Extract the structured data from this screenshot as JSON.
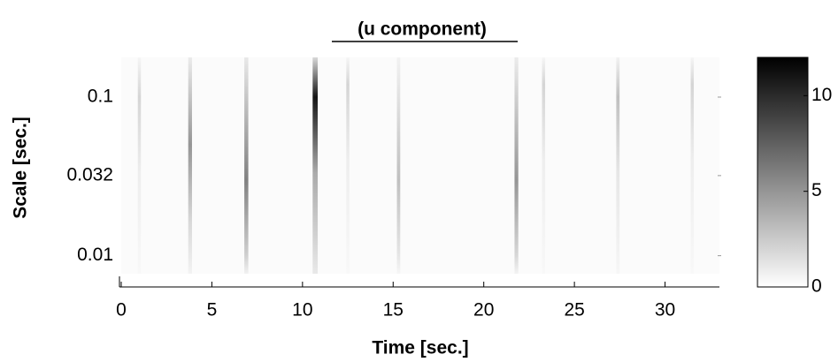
{
  "chart_data": {
    "type": "scalogram",
    "title": "(u component)",
    "x_label": "Time [sec.]",
    "y_label": "Scale [sec.]",
    "xlim": [
      0,
      33
    ],
    "xticks": [
      0,
      5,
      10,
      15,
      20,
      25,
      30
    ],
    "ylim": [
      0.0077,
      0.178
    ],
    "yscale": "log",
    "yticks": [
      0.01,
      0.032,
      0.1
    ],
    "x": [
      1,
      3.8,
      6.9,
      10.7,
      12.5,
      15.3,
      21.8,
      23.3,
      27.4,
      31.5
    ],
    "peak_scale": [
      0.1,
      0.05,
      0.03,
      0.1,
      0.12,
      0.03,
      0.03,
      0.12,
      0.1,
      0.12
    ],
    "values": [
      2,
      5,
      6,
      11,
      2,
      3,
      5,
      2,
      3,
      2
    ],
    "clim": [
      0,
      12
    ],
    "cticks": [
      0,
      5,
      10
    ],
    "colormap": [
      "#ffffff",
      "#000000"
    ]
  }
}
